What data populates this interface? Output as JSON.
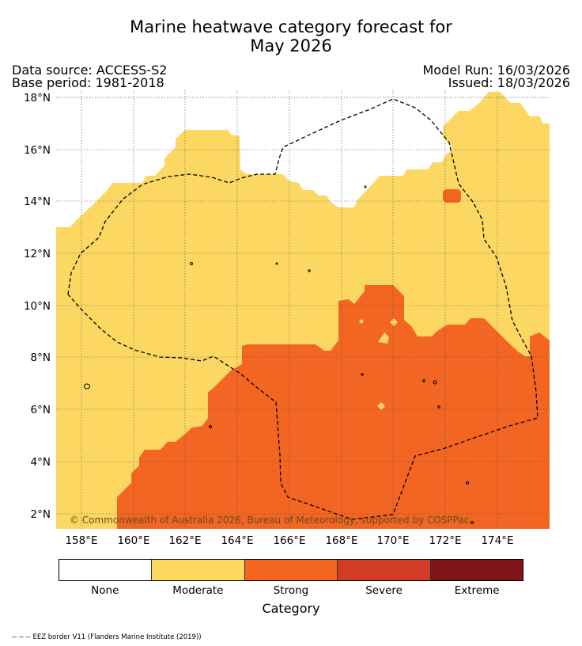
{
  "title_line1": "Marine heatwave category forecast for",
  "title_line2": "May 2026",
  "data_source": "Data source: ACCESS-S2",
  "base_period": "Base period: 1981-2018",
  "model_run": "Model Run: 16/03/2026",
  "issued": "Issued: 18/03/2026",
  "copyright": "© Commonwealth of Australia 2026, Bureau of Meteorology, supported by COSPPac",
  "x_ticks": [
    "158°E",
    "160°E",
    "162°E",
    "164°E",
    "166°E",
    "168°E",
    "170°E",
    "172°E",
    "174°E"
  ],
  "y_ticks": [
    "2°N",
    "4°N",
    "6°N",
    "8°N",
    "10°N",
    "12°N",
    "14°N",
    "16°N",
    "18°N"
  ],
  "legend": {
    "title": "Category",
    "categories": [
      {
        "label": "None",
        "color": "#ffffff"
      },
      {
        "label": "Moderate",
        "color": "#fcd863"
      },
      {
        "label": "Strong",
        "color": "#f26522"
      },
      {
        "label": "Severe",
        "color": "#d13c27"
      },
      {
        "label": "Extreme",
        "color": "#7f1518"
      }
    ]
  },
  "eez_note": "-- -- -- EEZ border V11 (Flanders Marine Institute (2019))",
  "colors": {
    "moderate": "#fcd863",
    "strong": "#f26522",
    "none": "#ffffff",
    "eez": "#000000"
  }
}
